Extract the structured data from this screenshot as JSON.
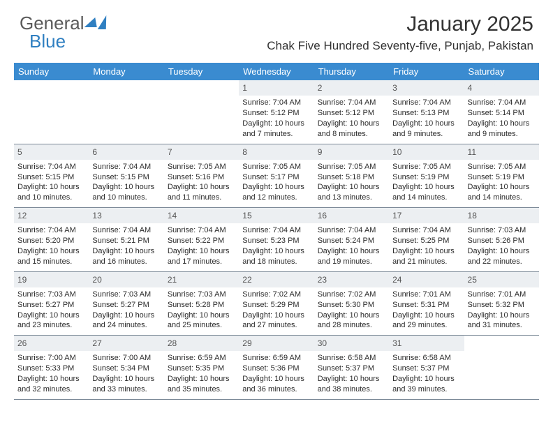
{
  "brand": {
    "part1": "General",
    "part2": "Blue"
  },
  "title": "January 2025",
  "location": "Chak Five Hundred Seventy-five, Punjab, Pakistan",
  "colors": {
    "header_bg": "#3a8bd0",
    "header_text": "#ffffff",
    "daynum_bg": "#eceff2",
    "row_border": "#7a8896",
    "title_color": "#333333",
    "body_text": "#2b2b2b",
    "logo_gray": "#5a5a5a",
    "logo_blue": "#2f7fc1"
  },
  "typography": {
    "month_title_pt": 30,
    "location_pt": 17,
    "dow_pt": 13,
    "daynum_pt": 12,
    "cell_text_pt": 11
  },
  "days_of_week": [
    "Sunday",
    "Monday",
    "Tuesday",
    "Wednesday",
    "Thursday",
    "Friday",
    "Saturday"
  ],
  "weeks": [
    [
      {
        "n": "",
        "sr": "",
        "ss": "",
        "dl": ""
      },
      {
        "n": "",
        "sr": "",
        "ss": "",
        "dl": ""
      },
      {
        "n": "",
        "sr": "",
        "ss": "",
        "dl": ""
      },
      {
        "n": "1",
        "sr": "7:04 AM",
        "ss": "5:12 PM",
        "dl": "10 hours and 7 minutes."
      },
      {
        "n": "2",
        "sr": "7:04 AM",
        "ss": "5:12 PM",
        "dl": "10 hours and 8 minutes."
      },
      {
        "n": "3",
        "sr": "7:04 AM",
        "ss": "5:13 PM",
        "dl": "10 hours and 9 minutes."
      },
      {
        "n": "4",
        "sr": "7:04 AM",
        "ss": "5:14 PM",
        "dl": "10 hours and 9 minutes."
      }
    ],
    [
      {
        "n": "5",
        "sr": "7:04 AM",
        "ss": "5:15 PM",
        "dl": "10 hours and 10 minutes."
      },
      {
        "n": "6",
        "sr": "7:04 AM",
        "ss": "5:15 PM",
        "dl": "10 hours and 10 minutes."
      },
      {
        "n": "7",
        "sr": "7:05 AM",
        "ss": "5:16 PM",
        "dl": "10 hours and 11 minutes."
      },
      {
        "n": "8",
        "sr": "7:05 AM",
        "ss": "5:17 PM",
        "dl": "10 hours and 12 minutes."
      },
      {
        "n": "9",
        "sr": "7:05 AM",
        "ss": "5:18 PM",
        "dl": "10 hours and 13 minutes."
      },
      {
        "n": "10",
        "sr": "7:05 AM",
        "ss": "5:19 PM",
        "dl": "10 hours and 14 minutes."
      },
      {
        "n": "11",
        "sr": "7:05 AM",
        "ss": "5:19 PM",
        "dl": "10 hours and 14 minutes."
      }
    ],
    [
      {
        "n": "12",
        "sr": "7:04 AM",
        "ss": "5:20 PM",
        "dl": "10 hours and 15 minutes."
      },
      {
        "n": "13",
        "sr": "7:04 AM",
        "ss": "5:21 PM",
        "dl": "10 hours and 16 minutes."
      },
      {
        "n": "14",
        "sr": "7:04 AM",
        "ss": "5:22 PM",
        "dl": "10 hours and 17 minutes."
      },
      {
        "n": "15",
        "sr": "7:04 AM",
        "ss": "5:23 PM",
        "dl": "10 hours and 18 minutes."
      },
      {
        "n": "16",
        "sr": "7:04 AM",
        "ss": "5:24 PM",
        "dl": "10 hours and 19 minutes."
      },
      {
        "n": "17",
        "sr": "7:04 AM",
        "ss": "5:25 PM",
        "dl": "10 hours and 21 minutes."
      },
      {
        "n": "18",
        "sr": "7:03 AM",
        "ss": "5:26 PM",
        "dl": "10 hours and 22 minutes."
      }
    ],
    [
      {
        "n": "19",
        "sr": "7:03 AM",
        "ss": "5:27 PM",
        "dl": "10 hours and 23 minutes."
      },
      {
        "n": "20",
        "sr": "7:03 AM",
        "ss": "5:27 PM",
        "dl": "10 hours and 24 minutes."
      },
      {
        "n": "21",
        "sr": "7:03 AM",
        "ss": "5:28 PM",
        "dl": "10 hours and 25 minutes."
      },
      {
        "n": "22",
        "sr": "7:02 AM",
        "ss": "5:29 PM",
        "dl": "10 hours and 27 minutes."
      },
      {
        "n": "23",
        "sr": "7:02 AM",
        "ss": "5:30 PM",
        "dl": "10 hours and 28 minutes."
      },
      {
        "n": "24",
        "sr": "7:01 AM",
        "ss": "5:31 PM",
        "dl": "10 hours and 29 minutes."
      },
      {
        "n": "25",
        "sr": "7:01 AM",
        "ss": "5:32 PM",
        "dl": "10 hours and 31 minutes."
      }
    ],
    [
      {
        "n": "26",
        "sr": "7:00 AM",
        "ss": "5:33 PM",
        "dl": "10 hours and 32 minutes."
      },
      {
        "n": "27",
        "sr": "7:00 AM",
        "ss": "5:34 PM",
        "dl": "10 hours and 33 minutes."
      },
      {
        "n": "28",
        "sr": "6:59 AM",
        "ss": "5:35 PM",
        "dl": "10 hours and 35 minutes."
      },
      {
        "n": "29",
        "sr": "6:59 AM",
        "ss": "5:36 PM",
        "dl": "10 hours and 36 minutes."
      },
      {
        "n": "30",
        "sr": "6:58 AM",
        "ss": "5:37 PM",
        "dl": "10 hours and 38 minutes."
      },
      {
        "n": "31",
        "sr": "6:58 AM",
        "ss": "5:37 PM",
        "dl": "10 hours and 39 minutes."
      },
      {
        "n": "",
        "sr": "",
        "ss": "",
        "dl": ""
      }
    ]
  ],
  "labels": {
    "sunrise": "Sunrise:",
    "sunset": "Sunset:",
    "daylight": "Daylight:"
  }
}
